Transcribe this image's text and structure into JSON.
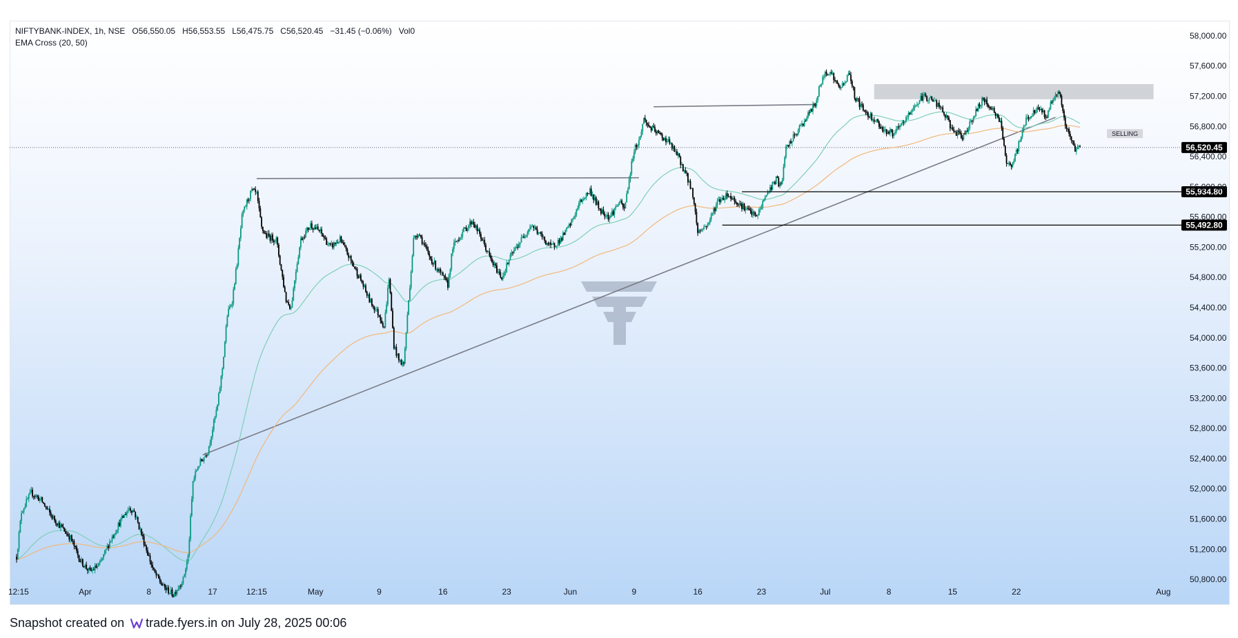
{
  "header": {
    "symbol": "NIFTYBANK-INDEX, 1h, NSE",
    "open": "O56,550.05",
    "high": "H56,553.55",
    "low": "L56,475.75",
    "close": "C56,520.45",
    "change": "−31.45 (−0.06%)",
    "volume": "Vol0",
    "indicator": "EMA Cross (20, 50)"
  },
  "footer": {
    "prefix": "Snapshot created on",
    "site": "trade.fyers.in",
    "suffix": "on July 28, 2025 00:06"
  },
  "colors": {
    "up": "#089981",
    "down": "#000000",
    "ema20": "#7fcfb6",
    "ema50": "#f2b77a",
    "trendline": "#787b86",
    "zone": "#c9cbd1",
    "badge": "#000000"
  },
  "chart_data": {
    "type": "candlestick",
    "y_axis": {
      "min": 50600,
      "max": 58200,
      "ticks": [
        "58,000.00",
        "57,600.00",
        "57,200.00",
        "56,800.00",
        "56,400.00",
        "56,000.00",
        "55,600.00",
        "55,200.00",
        "54,800.00",
        "54,400.00",
        "54,000.00",
        "53,600.00",
        "53,200.00",
        "52,800.00",
        "52,400.00",
        "52,000.00",
        "51,600.00",
        "51,200.00",
        "50,800.00"
      ]
    },
    "x_axis": {
      "labels": [
        {
          "text": "12:15",
          "t": 0.4
        },
        {
          "text": "Apr",
          "t": 14
        },
        {
          "text": "8",
          "t": 27
        },
        {
          "text": "17",
          "t": 40
        },
        {
          "text": "12:15",
          "t": 49
        },
        {
          "text": "May",
          "t": 61
        },
        {
          "text": "9",
          "t": 74
        },
        {
          "text": "16",
          "t": 87
        },
        {
          "text": "23",
          "t": 100
        },
        {
          "text": "Jun",
          "t": 113
        },
        {
          "text": "9",
          "t": 126
        },
        {
          "text": "16",
          "t": 139
        },
        {
          "text": "23",
          "t": 152
        },
        {
          "text": "Jul",
          "t": 165
        },
        {
          "text": "8",
          "t": 178
        },
        {
          "text": "15",
          "t": 191
        },
        {
          "text": "22",
          "t": 204
        },
        {
          "text": "Aug",
          "t": 234
        }
      ],
      "t_max": 236
    },
    "last_price": {
      "value": 56520.45,
      "label": "56,520.45"
    },
    "levels": [
      {
        "value": 55934.8,
        "label": "55,934.80",
        "t_start": 148
      },
      {
        "value": 55492.8,
        "label": "55,492.80",
        "t_start": 144
      }
    ],
    "zone": {
      "label": "",
      "y_low": 57160,
      "y_high": 57360,
      "t_start": 175,
      "t_end": 232
    },
    "selling_label": "SELLING",
    "trendlines": [
      {
        "t1": 38,
        "y1": 52450,
        "t2": 212,
        "y2": 56920
      },
      {
        "t1": 49,
        "y1": 56110,
        "t2": 127,
        "y2": 56120
      },
      {
        "t1": 130,
        "y1": 57060,
        "t2": 163,
        "y2": 57090
      }
    ],
    "price_path": [
      [
        0,
        51100
      ],
      [
        1,
        51700
      ],
      [
        3,
        51950
      ],
      [
        5,
        51850
      ],
      [
        7,
        51650
      ],
      [
        9,
        51500
      ],
      [
        11,
        51350
      ],
      [
        13,
        51050
      ],
      [
        15,
        50900
      ],
      [
        17,
        51000
      ],
      [
        19,
        51300
      ],
      [
        21,
        51550
      ],
      [
        23,
        51750
      ],
      [
        24,
        51700
      ],
      [
        26,
        51300
      ],
      [
        28,
        50900
      ],
      [
        30,
        50700
      ],
      [
        32,
        50600
      ],
      [
        34,
        50800
      ],
      [
        35,
        51100
      ],
      [
        36,
        52100
      ],
      [
        37,
        52300
      ],
      [
        39,
        52500
      ],
      [
        41,
        53100
      ],
      [
        42,
        53600
      ],
      [
        43,
        54300
      ],
      [
        44,
        54500
      ],
      [
        45,
        55000
      ],
      [
        46,
        55600
      ],
      [
        47,
        55800
      ],
      [
        48,
        55950
      ],
      [
        49,
        55900
      ],
      [
        50,
        55450
      ],
      [
        51,
        55350
      ],
      [
        53,
        55300
      ],
      [
        55,
        54500
      ],
      [
        56,
        54400
      ],
      [
        57,
        54900
      ],
      [
        58,
        55300
      ],
      [
        60,
        55500
      ],
      [
        62,
        55400
      ],
      [
        64,
        55200
      ],
      [
        66,
        55300
      ],
      [
        68,
        55050
      ],
      [
        70,
        54800
      ],
      [
        72,
        54500
      ],
      [
        74,
        54300
      ],
      [
        75,
        54150
      ],
      [
        76,
        54800
      ],
      [
        77,
        53900
      ],
      [
        78,
        53700
      ],
      [
        79,
        53650
      ],
      [
        80,
        54500
      ],
      [
        81,
        55300
      ],
      [
        82,
        55400
      ],
      [
        84,
        55100
      ],
      [
        86,
        54900
      ],
      [
        88,
        54700
      ],
      [
        89,
        55200
      ],
      [
        91,
        55400
      ],
      [
        93,
        55550
      ],
      [
        95,
        55300
      ],
      [
        97,
        55000
      ],
      [
        99,
        54800
      ],
      [
        101,
        55100
      ],
      [
        103,
        55300
      ],
      [
        105,
        55500
      ],
      [
        107,
        55350
      ],
      [
        109,
        55200
      ],
      [
        111,
        55300
      ],
      [
        113,
        55500
      ],
      [
        115,
        55800
      ],
      [
        117,
        55950
      ],
      [
        119,
        55700
      ],
      [
        121,
        55600
      ],
      [
        123,
        55800
      ],
      [
        124,
        55700
      ],
      [
        125,
        56100
      ],
      [
        126,
        56500
      ],
      [
        127,
        56600
      ],
      [
        128,
        56900
      ],
      [
        129,
        56800
      ],
      [
        131,
        56700
      ],
      [
        133,
        56600
      ],
      [
        135,
        56400
      ],
      [
        137,
        56100
      ],
      [
        138,
        55900
      ],
      [
        139,
        55400
      ],
      [
        141,
        55500
      ],
      [
        143,
        55800
      ],
      [
        145,
        55900
      ],
      [
        147,
        55800
      ],
      [
        149,
        55700
      ],
      [
        151,
        55600
      ],
      [
        152,
        55750
      ],
      [
        153,
        55900
      ],
      [
        155,
        56100
      ],
      [
        156,
        56000
      ],
      [
        157,
        56500
      ],
      [
        159,
        56700
      ],
      [
        161,
        56900
      ],
      [
        163,
        57100
      ],
      [
        164,
        57350
      ],
      [
        165,
        57500
      ],
      [
        166,
        57550
      ],
      [
        167,
        57400
      ],
      [
        168,
        57300
      ],
      [
        169,
        57400
      ],
      [
        170,
        57500
      ],
      [
        171,
        57200
      ],
      [
        173,
        57000
      ],
      [
        175,
        56900
      ],
      [
        177,
        56750
      ],
      [
        179,
        56700
      ],
      [
        181,
        56850
      ],
      [
        183,
        57050
      ],
      [
        185,
        57200
      ],
      [
        187,
        57150
      ],
      [
        189,
        57000
      ],
      [
        191,
        56750
      ],
      [
        193,
        56650
      ],
      [
        195,
        56900
      ],
      [
        197,
        57150
      ],
      [
        199,
        57050
      ],
      [
        201,
        56800
      ],
      [
        202,
        56300
      ],
      [
        203,
        56250
      ],
      [
        204,
        56450
      ],
      [
        206,
        56900
      ],
      [
        208,
        57000
      ],
      [
        209,
        57050
      ],
      [
        210,
        56900
      ],
      [
        211,
        57100
      ],
      [
        212,
        57250
      ],
      [
        213,
        57200
      ],
      [
        214,
        56800
      ],
      [
        215,
        56650
      ],
      [
        216,
        56500
      ],
      [
        217,
        56520
      ]
    ]
  }
}
